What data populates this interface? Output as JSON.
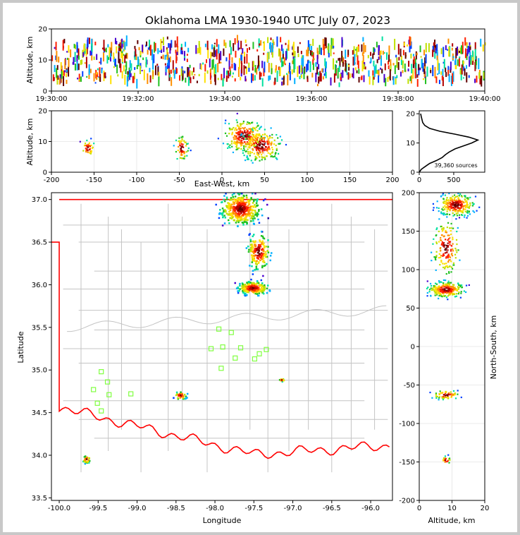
{
  "title": "Oklahoma LMA 1930-1940 UTC July 07, 2023",
  "chart_data": [
    {
      "id": "time_height",
      "type": "scatter",
      "xlabel": "",
      "ylabel": "Altitude, km",
      "xticks": [
        "19:30:00",
        "19:32:00",
        "19:34:00",
        "19:36:00",
        "19:38:00",
        "19:40:00"
      ],
      "xlim_minutes": [
        0,
        10
      ],
      "ylim": [
        0,
        20
      ],
      "yticks": [
        0,
        10,
        20
      ],
      "density_bands_km": [
        [
          3,
          16
        ]
      ]
    },
    {
      "id": "eastwest_height",
      "type": "scatter",
      "xlabel": "East-West, km",
      "ylabel": "Altitude, km",
      "xlim": [
        -200,
        200
      ],
      "xticks": [
        -200,
        -150,
        -100,
        -50,
        0,
        50,
        100,
        150,
        200
      ],
      "ylim": [
        0,
        20
      ],
      "yticks": [
        0,
        10,
        20
      ],
      "clusters": [
        {
          "x": -158,
          "z": 8,
          "spread_x": 4,
          "spread_z": 2,
          "n": 40
        },
        {
          "x": -48,
          "z": 8,
          "spread_x": 4,
          "spread_z": 3,
          "n": 60
        },
        {
          "x": 25,
          "z": 12,
          "spread_x": 12,
          "spread_z": 4,
          "n": 260
        },
        {
          "x": 45,
          "z": 9,
          "spread_x": 12,
          "spread_z": 4,
          "n": 220
        }
      ]
    },
    {
      "id": "altitude_histogram",
      "type": "line",
      "annotation": "39,360 sources",
      "xlim": [
        0,
        950
      ],
      "xticks": [
        0,
        500
      ],
      "ylim": [
        0,
        21
      ],
      "yticks": [
        0,
        10,
        20
      ],
      "profile": [
        [
          0,
          0
        ],
        [
          30,
          1
        ],
        [
          90,
          2
        ],
        [
          150,
          3
        ],
        [
          250,
          4
        ],
        [
          330,
          5
        ],
        [
          380,
          6
        ],
        [
          440,
          7
        ],
        [
          520,
          8
        ],
        [
          640,
          9
        ],
        [
          760,
          10
        ],
        [
          850,
          11
        ],
        [
          720,
          12
        ],
        [
          520,
          13
        ],
        [
          300,
          14
        ],
        [
          150,
          15
        ],
        [
          80,
          16
        ],
        [
          50,
          17
        ],
        [
          40,
          18
        ],
        [
          30,
          19
        ],
        [
          20,
          20
        ]
      ]
    },
    {
      "id": "plan_view",
      "type": "scatter",
      "xlabel": "Longitude",
      "ylabel": "Latitude",
      "xlim": [
        -100.1,
        -95.72
      ],
      "xticks": [
        -100.0,
        -99.5,
        -99.0,
        -98.5,
        -98.0,
        -97.5,
        -97.0,
        -96.5,
        -96.0
      ],
      "ylim": [
        33.47,
        37.08
      ],
      "yticks": [
        33.5,
        34.0,
        34.5,
        35.0,
        35.5,
        36.0,
        36.5,
        37.0
      ],
      "stations": [
        {
          "lon": -97.95,
          "lat": 35.48
        },
        {
          "lon": -97.79,
          "lat": 35.44
        },
        {
          "lon": -98.05,
          "lat": 35.25
        },
        {
          "lon": -97.9,
          "lat": 35.27
        },
        {
          "lon": -97.67,
          "lat": 35.26
        },
        {
          "lon": -97.34,
          "lat": 35.24
        },
        {
          "lon": -97.43,
          "lat": 35.19
        },
        {
          "lon": -97.74,
          "lat": 35.14
        },
        {
          "lon": -97.49,
          "lat": 35.13
        },
        {
          "lon": -97.92,
          "lat": 35.02
        },
        {
          "lon": -99.46,
          "lat": 34.98
        },
        {
          "lon": -99.38,
          "lat": 34.86
        },
        {
          "lon": -99.56,
          "lat": 34.77
        },
        {
          "lon": -99.36,
          "lat": 34.71
        },
        {
          "lon": -99.08,
          "lat": 34.72
        },
        {
          "lon": -99.51,
          "lat": 34.61
        },
        {
          "lon": -99.46,
          "lat": 34.52
        }
      ],
      "clusters": [
        {
          "lon": -97.68,
          "lat": 36.9,
          "spread_lon": 0.16,
          "spread_lat": 0.12,
          "n": 420
        },
        {
          "lon": -97.45,
          "lat": 36.4,
          "spread_lon": 0.09,
          "spread_lat": 0.14,
          "n": 160
        },
        {
          "lon": -97.52,
          "lat": 35.97,
          "spread_lon": 0.12,
          "spread_lat": 0.05,
          "n": 240
        },
        {
          "lon": -97.15,
          "lat": 34.89,
          "spread_lon": 0.02,
          "spread_lat": 0.01,
          "n": 15
        },
        {
          "lon": -98.45,
          "lat": 34.71,
          "spread_lon": 0.05,
          "spread_lat": 0.03,
          "n": 40
        },
        {
          "lon": -99.66,
          "lat": 33.96,
          "spread_lon": 0.03,
          "spread_lat": 0.03,
          "n": 25
        }
      ]
    },
    {
      "id": "northsouth_height",
      "type": "scatter",
      "xlabel": "Altitude, km",
      "ylabel": "North-South, km",
      "xlim": [
        0,
        20
      ],
      "xticks": [
        0,
        10,
        20
      ],
      "ylim": [
        -200,
        200
      ],
      "yticks": [
        -200,
        -150,
        -100,
        -50,
        0,
        50,
        100,
        150,
        200
      ],
      "clusters": [
        {
          "z": 11,
          "y": 185,
          "spread_z": 4,
          "spread_y": 10,
          "n": 260
        },
        {
          "z": 8,
          "y": 130,
          "spread_z": 3,
          "spread_y": 25,
          "n": 160
        },
        {
          "z": 8,
          "y": 75,
          "spread_z": 4,
          "spread_y": 7,
          "n": 240
        },
        {
          "z": 8,
          "y": -62,
          "spread_z": 3,
          "spread_y": 4,
          "n": 60
        },
        {
          "z": 8,
          "y": -147,
          "spread_z": 1,
          "spread_y": 4,
          "n": 20
        }
      ]
    }
  ],
  "colors": {
    "state_border": "#ff0000",
    "county_lines": "#c4c4c4",
    "station_marker": "#80ff40",
    "density_scale": [
      "#2000a0",
      "#4a00d0",
      "#0040ff",
      "#00b0ff",
      "#00e0a0",
      "#20c020",
      "#c0e000",
      "#ffe000",
      "#ff9000",
      "#ff2000",
      "#b00000",
      "#600000",
      "#c0c0c0",
      "#ffffff"
    ]
  }
}
